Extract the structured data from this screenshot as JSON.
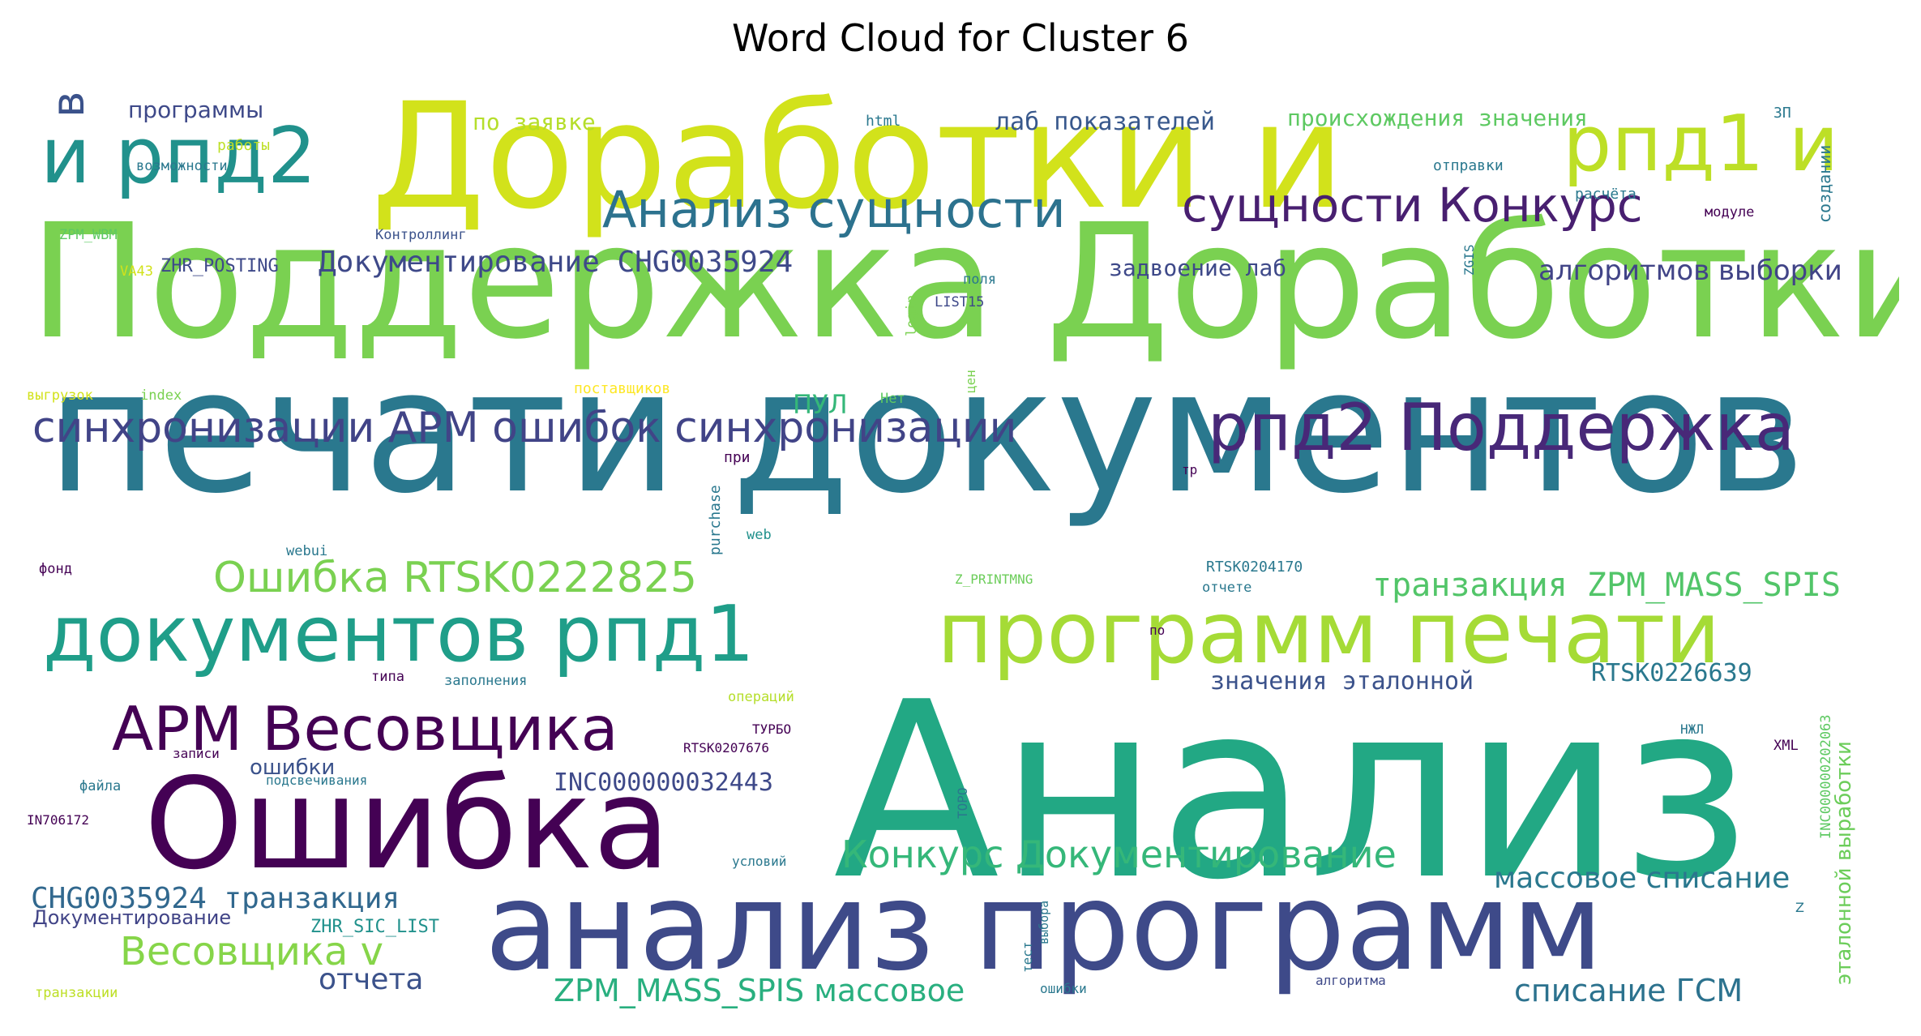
{
  "chart_data": {
    "type": "wordcloud",
    "title": "Word Cloud for Cluster 6",
    "colormap": "viridis",
    "background": "#ffffff",
    "words": [
      {
        "text": "Анализ",
        "color": "#22a884"
      },
      {
        "text": "печати документов",
        "color": "#2a788e"
      },
      {
        "text": "Поддержка Доработки",
        "color": "#7ad151"
      },
      {
        "text": "Доработки и",
        "color": "#d2e21b"
      },
      {
        "text": "анализ программ",
        "color": "#3e4a89"
      },
      {
        "text": "Ошибка",
        "color": "#440154"
      },
      {
        "text": "программ печати",
        "color": "#a5db36"
      },
      {
        "text": "документов рпд1",
        "color": "#1f9e89"
      },
      {
        "text": "и рпд2",
        "color": "#21918c"
      },
      {
        "text": "рпд1 и",
        "color": "#bddf26"
      },
      {
        "text": "рпд2 Поддержка",
        "color": "#482878"
      },
      {
        "text": "АРМ Весовщика",
        "color": "#440154"
      },
      {
        "text": "Анализ сущности",
        "color": "#2c728e"
      },
      {
        "text": "сущности Конкурс",
        "color": "#481f70"
      },
      {
        "text": "синхронизации АРМ ошибок синхронизации",
        "color": "#414487"
      },
      {
        "text": "Ошибка RTSK0222825",
        "color": "#7ad151"
      },
      {
        "text": "Весовщика v",
        "color": "#86d549"
      },
      {
        "text": "Конкурс Документирование",
        "color": "#35b779"
      },
      {
        "text": "в",
        "color": "#3b528b"
      },
      {
        "text": "транзакция ZPM_MASS_SPIS",
        "color": "#52c569"
      },
      {
        "text": "Документирование CHG0035924",
        "color": "#3e4989"
      },
      {
        "text": "алгоритмов выборки",
        "color": "#414487"
      },
      {
        "text": "CHG0035924 транзакция",
        "color": "#31688e"
      },
      {
        "text": "ZPM_MASS_SPIS массовое",
        "color": "#29af7f"
      },
      {
        "text": "массовое списание",
        "color": "#2a788e"
      },
      {
        "text": "списание ГСМ",
        "color": "#2c728e"
      },
      {
        "text": "отчета",
        "color": "#3b528b"
      },
      {
        "text": "INC000000032443",
        "color": "#3e4989"
      },
      {
        "text": "значения эталонной",
        "color": "#3b528b"
      },
      {
        "text": "RTSK0226639",
        "color": "#2a788e"
      },
      {
        "text": "лаб показателей",
        "color": "#38588c"
      },
      {
        "text": "происхождения значения",
        "color": "#5ec962"
      },
      {
        "text": "по заявке",
        "color": "#b5de2b"
      },
      {
        "text": "задвоение лаб",
        "color": "#3e4989"
      },
      {
        "text": "программы",
        "color": "#3e4989"
      },
      {
        "text": "ПУЛ",
        "color": "#35b779"
      },
      {
        "text": "эталонной выработки",
        "color": "#6ccd5a"
      },
      {
        "text": "ошибки",
        "color": "#3b528b"
      },
      {
        "text": "Документирование",
        "color": "#414487"
      },
      {
        "text": "ZHR_SIC_LIST",
        "color": "#21918c"
      },
      {
        "text": "ZHR_POSTING",
        "color": "#3e4989"
      },
      {
        "text": "html",
        "color": "#2a788e"
      },
      {
        "text": "ЗП",
        "color": "#2a788e"
      },
      {
        "text": "работы",
        "color": "#bddf26"
      },
      {
        "text": "возможности",
        "color": "#2a788e"
      },
      {
        "text": "отправки",
        "color": "#2a788e"
      },
      {
        "text": "создании",
        "color": "#2a788e"
      },
      {
        "text": "расчёта",
        "color": "#2a788e"
      },
      {
        "text": "модуле",
        "color": "#440154"
      },
      {
        "text": "ZPM_WBM",
        "color": "#5ec962"
      },
      {
        "text": "Контроллинг",
        "color": "#3b528b"
      },
      {
        "text": "ZGIS",
        "color": "#2a788e"
      },
      {
        "text": "VA43",
        "color": "#d2e21b"
      },
      {
        "text": "поля",
        "color": "#2a788e"
      },
      {
        "text": "login",
        "color": "#7ad151"
      },
      {
        "text": "LIST15",
        "color": "#3e4989"
      },
      {
        "text": "выгрузок",
        "color": "#d2e21b"
      },
      {
        "text": "index",
        "color": "#7ad151"
      },
      {
        "text": "поставщиков",
        "color": "#fde725"
      },
      {
        "text": "цен",
        "color": "#7ad151"
      },
      {
        "text": "Нет",
        "color": "#5ec962"
      },
      {
        "text": "при",
        "color": "#440154"
      },
      {
        "text": "purchase",
        "color": "#2a788e"
      },
      {
        "text": "web",
        "color": "#21918c"
      },
      {
        "text": "webui",
        "color": "#2a788e"
      },
      {
        "text": "тр",
        "color": "#440154"
      },
      {
        "text": "фонд",
        "color": "#440154"
      },
      {
        "text": "Z_PRINTMNG",
        "color": "#6ccd5a"
      },
      {
        "text": "RTSK0204170",
        "color": "#2a788e"
      },
      {
        "text": "отчете",
        "color": "#2a788e"
      },
      {
        "text": "по",
        "color": "#440154"
      },
      {
        "text": "типа",
        "color": "#440154"
      },
      {
        "text": "заполнения",
        "color": "#2a788e"
      },
      {
        "text": "операций",
        "color": "#b5de2b"
      },
      {
        "text": "ТУРБО",
        "color": "#440154"
      },
      {
        "text": "записи",
        "color": "#440154"
      },
      {
        "text": "RTSK0207676",
        "color": "#440154"
      },
      {
        "text": "файла",
        "color": "#2a788e"
      },
      {
        "text": "подсвечивания",
        "color": "#2a788e"
      },
      {
        "text": "IN706172",
        "color": "#440154"
      },
      {
        "text": "ТОРО",
        "color": "#2a788e"
      },
      {
        "text": "НЖЛ",
        "color": "#2a788e"
      },
      {
        "text": "XML",
        "color": "#440154"
      },
      {
        "text": "INC000000202063",
        "color": "#5ec962"
      },
      {
        "text": "условий",
        "color": "#2a788e"
      },
      {
        "text": "тест",
        "color": "#2a788e"
      },
      {
        "text": "выбора",
        "color": "#2a788e"
      },
      {
        "text": "ошибки",
        "color": "#2a788e"
      },
      {
        "text": "алгоритма",
        "color": "#3e4989"
      },
      {
        "text": "транзакции",
        "color": "#bddf26"
      },
      {
        "text": "Z",
        "color": "#2a788e"
      }
    ]
  }
}
